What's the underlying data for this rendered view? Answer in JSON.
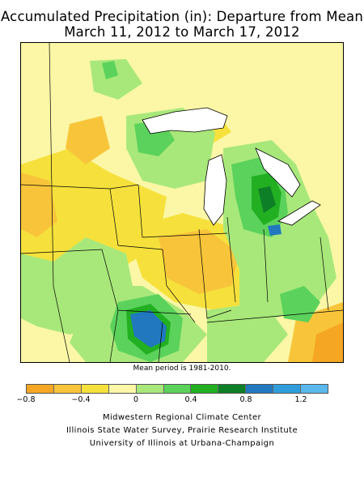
{
  "title_line1": "Accumulated Precipitation (in): Departure from Mean",
  "title_line2": "March 11, 2012 to March 17, 2012",
  "mean_period_note": "Mean period is 1981-2010.",
  "legend": {
    "colors": [
      "#f5a623",
      "#f8c53a",
      "#f6e13c",
      "#fbf7a6",
      "#a8e87a",
      "#5bd25b",
      "#22b022",
      "#0d7f26",
      "#2178be",
      "#2f9ddb",
      "#5ab8ec"
    ],
    "tick_labels": [
      "−0.8",
      "−0.4",
      "0",
      "0.4",
      "0.8",
      "1.2"
    ],
    "range": [
      -0.8,
      1.4
    ],
    "bin_width": 0.2
  },
  "credits": [
    "Midwestern Regional Climate Center",
    "Illinois State Water Survey, Prairie Research Institute",
    "University of Illinois at Urbana-Champaign"
  ],
  "colors": {
    "lake": "#ffffff",
    "boundary": "#000000"
  }
}
